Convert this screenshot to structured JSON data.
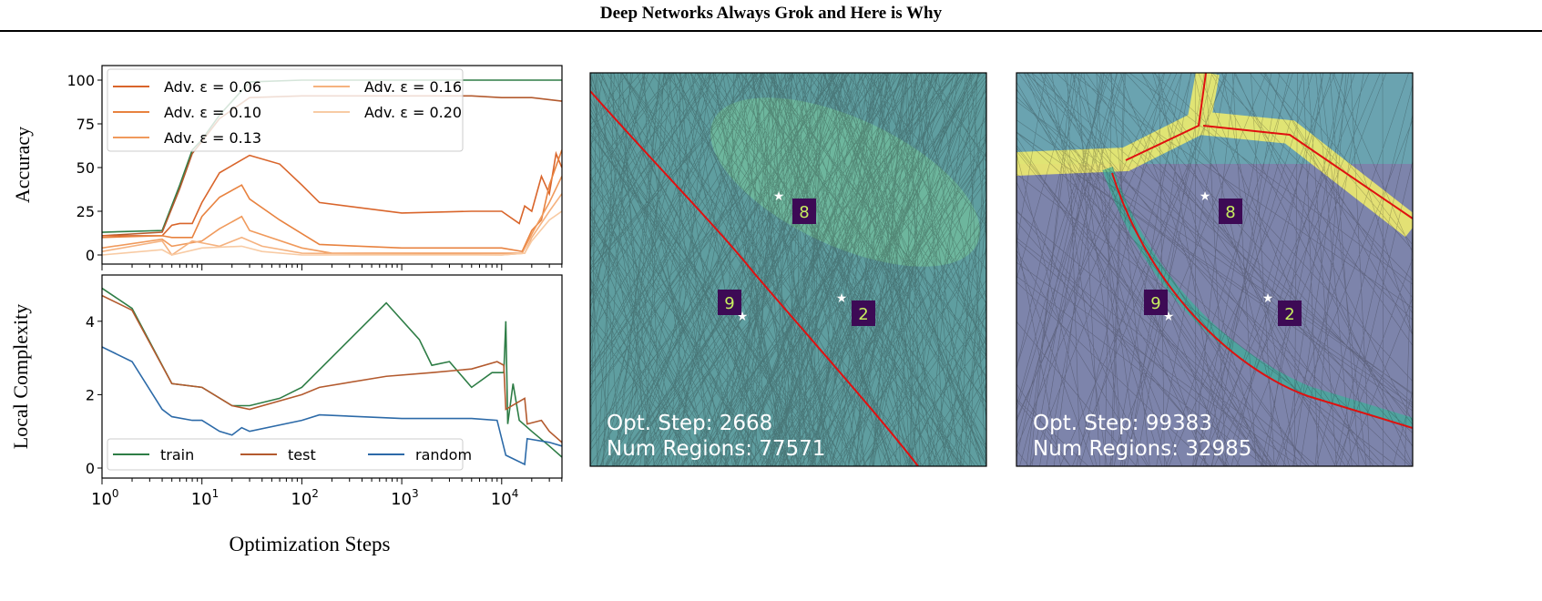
{
  "header": {
    "title": "Deep Networks Always Grok and Here is Why"
  },
  "chart_data": [
    {
      "type": "line",
      "ylabel": "Accuracy",
      "xscale": "log",
      "xlim": [
        1,
        40000
      ],
      "ylim": [
        -4,
        104
      ],
      "yticks": [
        0,
        25,
        50,
        75,
        100
      ],
      "legend_placement": "top-left",
      "series": [
        {
          "color": "#2e7d46",
          "points": [
            [
              1,
              13
            ],
            [
              4,
              14
            ],
            [
              6,
              40
            ],
            [
              8,
              60
            ],
            [
              10,
              66
            ],
            [
              15,
              80
            ],
            [
              30,
              99
            ],
            [
              100,
              100
            ],
            [
              10000,
              100
            ],
            [
              40000,
              100
            ]
          ]
        },
        {
          "color": "#b35a2e",
          "points": [
            [
              1,
              11
            ],
            [
              4,
              13
            ],
            [
              6,
              38
            ],
            [
              8,
              58
            ],
            [
              10,
              65
            ],
            [
              15,
              78
            ],
            [
              30,
              90
            ],
            [
              100,
              91
            ],
            [
              5000,
              91
            ],
            [
              10000,
              90
            ],
            [
              20000,
              90
            ],
            [
              40000,
              88
            ]
          ]
        },
        {
          "name": "Adv. ε = 0.06",
          "color": "#d9652b",
          "points": [
            [
              1,
              11
            ],
            [
              4,
              11
            ],
            [
              5,
              17
            ],
            [
              6,
              18
            ],
            [
              8,
              18
            ],
            [
              10,
              30
            ],
            [
              15,
              47
            ],
            [
              30,
              57
            ],
            [
              60,
              52
            ],
            [
              100,
              40
            ],
            [
              150,
              30
            ],
            [
              1000,
              24
            ],
            [
              5000,
              25
            ],
            [
              10000,
              25
            ],
            [
              15000,
              18
            ],
            [
              17000,
              28
            ],
            [
              20000,
              25
            ],
            [
              25000,
              45
            ],
            [
              30000,
              35
            ],
            [
              35000,
              58
            ],
            [
              40000,
              50
            ]
          ]
        },
        {
          "name": "Adv. ε = 0.10",
          "color": "#e8823f",
          "points": [
            [
              1,
              10
            ],
            [
              4,
              11
            ],
            [
              5,
              10
            ],
            [
              8,
              10
            ],
            [
              10,
              22
            ],
            [
              15,
              33
            ],
            [
              25,
              40
            ],
            [
              30,
              32
            ],
            [
              60,
              20
            ],
            [
              150,
              6
            ],
            [
              1000,
              4
            ],
            [
              10000,
              4
            ],
            [
              16000,
              2
            ],
            [
              20000,
              14
            ],
            [
              25000,
              20
            ],
            [
              30000,
              40
            ],
            [
              40000,
              60
            ]
          ]
        },
        {
          "name": "Adv. ε = 0.13",
          "color": "#f09a5c",
          "points": [
            [
              1,
              4
            ],
            [
              4,
              9
            ],
            [
              5,
              5
            ],
            [
              10,
              8
            ],
            [
              15,
              15
            ],
            [
              25,
              22
            ],
            [
              30,
              14
            ],
            [
              100,
              4
            ],
            [
              200,
              1
            ],
            [
              10000,
              1
            ],
            [
              16000,
              1
            ],
            [
              20000,
              12
            ],
            [
              30000,
              30
            ],
            [
              40000,
              45
            ]
          ]
        },
        {
          "name": "Adv. ε = 0.16",
          "color": "#f5b27f",
          "points": [
            [
              1,
              2
            ],
            [
              4,
              8
            ],
            [
              5,
              0
            ],
            [
              8,
              8
            ],
            [
              15,
              5
            ],
            [
              25,
              10
            ],
            [
              40,
              5
            ],
            [
              100,
              1
            ],
            [
              10000,
              0
            ],
            [
              17000,
              1
            ],
            [
              20000,
              10
            ],
            [
              30000,
              25
            ],
            [
              40000,
              35
            ]
          ]
        },
        {
          "name": "Adv. ε = 0.20",
          "color": "#f8cba4",
          "points": [
            [
              1,
              0
            ],
            [
              4,
              3
            ],
            [
              5,
              0
            ],
            [
              10,
              4
            ],
            [
              25,
              5
            ],
            [
              40,
              2
            ],
            [
              100,
              0
            ],
            [
              10000,
              0
            ],
            [
              17000,
              1
            ],
            [
              20000,
              8
            ],
            [
              30000,
              20
            ],
            [
              40000,
              25
            ]
          ]
        }
      ]
    },
    {
      "type": "line",
      "ylabel": "Local Complexity",
      "xlabel": "Optimization Steps",
      "xscale": "log",
      "xlim": [
        1,
        40000
      ],
      "ylim": [
        -0.3,
        5.2
      ],
      "yticks": [
        0,
        2,
        4
      ],
      "xticks": [
        "10^0",
        "10^1",
        "10^2",
        "10^3",
        "10^4"
      ],
      "legend_placement": "bottom-left",
      "series": [
        {
          "name": "train",
          "color": "#2e7d46",
          "points": [
            [
              1,
              4.9
            ],
            [
              2,
              4.35
            ],
            [
              5,
              2.3
            ],
            [
              10,
              2.2
            ],
            [
              20,
              1.7
            ],
            [
              30,
              1.7
            ],
            [
              60,
              1.9
            ],
            [
              100,
              2.2
            ],
            [
              700,
              4.5
            ],
            [
              1500,
              3.5
            ],
            [
              2000,
              2.8
            ],
            [
              3000,
              2.9
            ],
            [
              5000,
              2.2
            ],
            [
              8000,
              2.6
            ],
            [
              10500,
              2.6
            ],
            [
              11000,
              4.0
            ],
            [
              11500,
              1.2
            ],
            [
              13000,
              2.3
            ],
            [
              15000,
              1.3
            ],
            [
              20000,
              1.0
            ],
            [
              30000,
              0.6
            ],
            [
              40000,
              0.3
            ]
          ]
        },
        {
          "name": "test",
          "color": "#b35a2e",
          "points": [
            [
              1,
              4.7
            ],
            [
              2,
              4.3
            ],
            [
              5,
              2.3
            ],
            [
              10,
              2.2
            ],
            [
              20,
              1.7
            ],
            [
              30,
              1.6
            ],
            [
              100,
              2.0
            ],
            [
              150,
              2.2
            ],
            [
              700,
              2.5
            ],
            [
              2000,
              2.6
            ],
            [
              5000,
              2.7
            ],
            [
              9000,
              2.9
            ],
            [
              10500,
              2.8
            ],
            [
              11000,
              1.6
            ],
            [
              17000,
              1.9
            ],
            [
              18000,
              1.2
            ],
            [
              25000,
              1.3
            ],
            [
              30000,
              1.0
            ],
            [
              40000,
              0.7
            ]
          ]
        },
        {
          "name": "random",
          "color": "#2c6aa8",
          "points": [
            [
              1,
              3.3
            ],
            [
              2,
              2.9
            ],
            [
              4,
              1.6
            ],
            [
              5,
              1.4
            ],
            [
              8,
              1.3
            ],
            [
              10,
              1.3
            ],
            [
              15,
              1.0
            ],
            [
              20,
              0.9
            ],
            [
              25,
              1.1
            ],
            [
              30,
              1.0
            ],
            [
              100,
              1.3
            ],
            [
              150,
              1.45
            ],
            [
              1000,
              1.35
            ],
            [
              5000,
              1.35
            ],
            [
              9000,
              1.3
            ],
            [
              11000,
              0.35
            ],
            [
              17000,
              0.1
            ],
            [
              18000,
              0.8
            ],
            [
              30000,
              0.7
            ],
            [
              40000,
              0.6
            ]
          ]
        }
      ]
    }
  ],
  "panels": [
    {
      "step_label": "Opt. Step: 2668",
      "regions_label": "Num Regions: 77571",
      "bg": "#5f9ea0",
      "accent": "#7fd39a"
    },
    {
      "step_label": "Opt. Step: 99383",
      "regions_label": "Num Regions: 32985",
      "bg": "#7d84ab",
      "accent": "#f4f06a"
    }
  ],
  "digits": [
    "8",
    "9",
    "2"
  ]
}
